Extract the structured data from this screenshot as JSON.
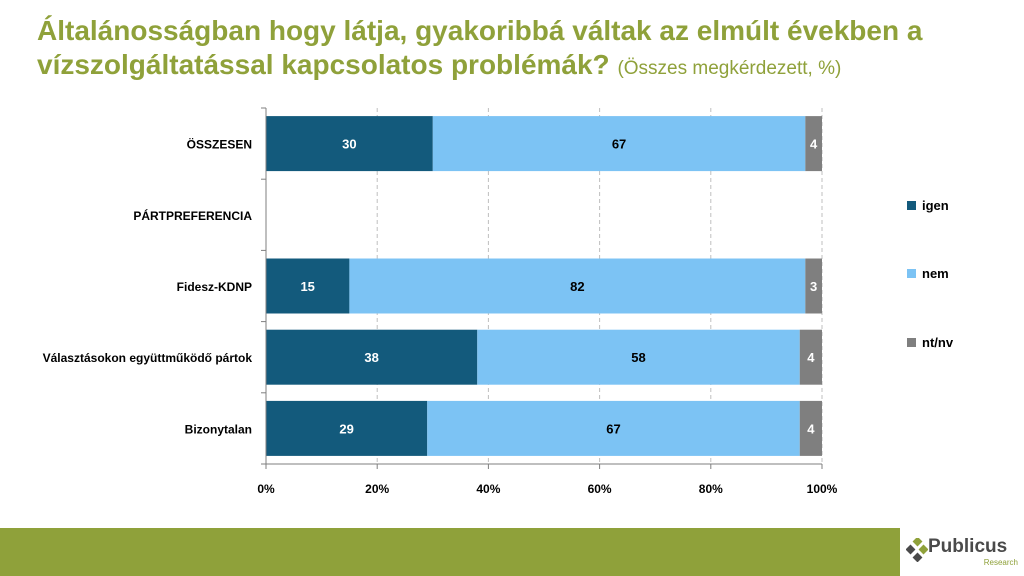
{
  "title": {
    "main": "Általánosságban hogy látja, gyakoribbá váltak az elmúlt években a vízszolgáltatással kapcsolatos problémák?",
    "subtitle": "(Összes megkérdezett, %)"
  },
  "chart_data": {
    "type": "bar",
    "orientation": "horizontal",
    "stacked": true,
    "categories": [
      "ÖSSZESEN",
      "PÁRTPREFERENCIA",
      "Fidesz-KDNP",
      "Választásokon együttműködő pártok",
      "Bizonytalan"
    ],
    "series": [
      {
        "name": "igen",
        "color": "#135a7c",
        "values": [
          30,
          null,
          15,
          38,
          29
        ]
      },
      {
        "name": "nem",
        "color": "#7cc3f4",
        "values": [
          67,
          null,
          82,
          58,
          67
        ]
      },
      {
        "name": "nt/nv",
        "color": "#7f7f7f",
        "values": [
          4,
          null,
          3,
          4,
          4
        ]
      }
    ],
    "xlim": [
      0,
      100
    ],
    "xticks": [
      "0%",
      "20%",
      "40%",
      "60%",
      "80%",
      "100%"
    ],
    "grid": "vertical-dashed",
    "legend": "right"
  },
  "brand": {
    "name": "Publicus",
    "tagline": "Research",
    "accent": "#8fa13a"
  }
}
